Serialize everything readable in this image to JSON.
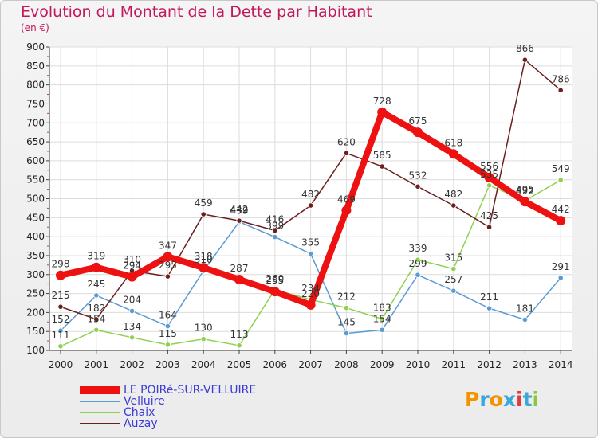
{
  "title": "Evolution du Montant de la Dette par Habitant",
  "subtitle": "(en €)",
  "logo": {
    "text": "Proxiti",
    "colors": [
      "#f29400",
      "#3aa8db",
      "#f29400",
      "#3aa8db",
      "#e23b3b",
      "#3aa8db",
      "#8cc63f"
    ]
  },
  "chart_data": {
    "type": "line",
    "x": [
      "2000",
      "2001",
      "2002",
      "2003",
      "2004",
      "2005",
      "2006",
      "2007",
      "2008",
      "2009",
      "2010",
      "2011",
      "2012",
      "2013",
      "2014"
    ],
    "ylim": [
      100,
      900
    ],
    "yticks": [
      100,
      150,
      200,
      250,
      300,
      350,
      400,
      450,
      500,
      550,
      600,
      650,
      700,
      750,
      800,
      850,
      900
    ],
    "grid": true,
    "legend_position": "bottom-left",
    "series": [
      {
        "name": "LE POIRé-SUR-VELLUIRE",
        "color": "#ee1111",
        "width": 8,
        "start": 0,
        "values": [
          298,
          319,
          294,
          347,
          318,
          287,
          255,
          220,
          469,
          728,
          675,
          618,
          556,
          492,
          442
        ],
        "labels": [
          "298",
          "319",
          "294",
          "347",
          "318",
          "287",
          "255",
          "220",
          "469",
          "728",
          "675",
          "618",
          "556",
          "492",
          "442"
        ]
      },
      {
        "name": "Velluire",
        "color": "#5b9bd5",
        "width": 1.5,
        "start": 0,
        "values": [
          152,
          245,
          204,
          164,
          310,
          439,
          399,
          355,
          145,
          154,
          299,
          257,
          211,
          181,
          291
        ],
        "labels": [
          "152",
          "245",
          "204",
          "164",
          "310",
          "439",
          "399",
          "355",
          "145",
          "154",
          "299",
          "257",
          "211",
          "181",
          "291"
        ]
      },
      {
        "name": "Chaix",
        "color": "#8fd14f",
        "width": 1.5,
        "start": 0,
        "values": [
          111,
          154,
          134,
          115,
          130,
          113,
          260,
          234,
          212,
          183,
          339,
          315,
          535,
          495,
          549
        ],
        "labels": [
          "111",
          "154",
          "134",
          "115",
          "130",
          "113",
          "260",
          "234",
          "212",
          "183",
          "339",
          "315",
          "535",
          "495",
          "549"
        ]
      },
      {
        "name": "Auzay",
        "color": "#6b1f1f",
        "width": 1.5,
        "start": 0,
        "values": [
          215,
          182,
          310,
          295,
          459,
          442,
          416,
          482,
          620,
          585,
          532,
          482,
          425,
          866,
          786
        ],
        "labels": [
          "215",
          "182",
          "310",
          "295",
          "459",
          "442",
          "416",
          "482",
          "620",
          "585",
          "532",
          "482",
          "425",
          "866",
          "786"
        ]
      }
    ]
  }
}
